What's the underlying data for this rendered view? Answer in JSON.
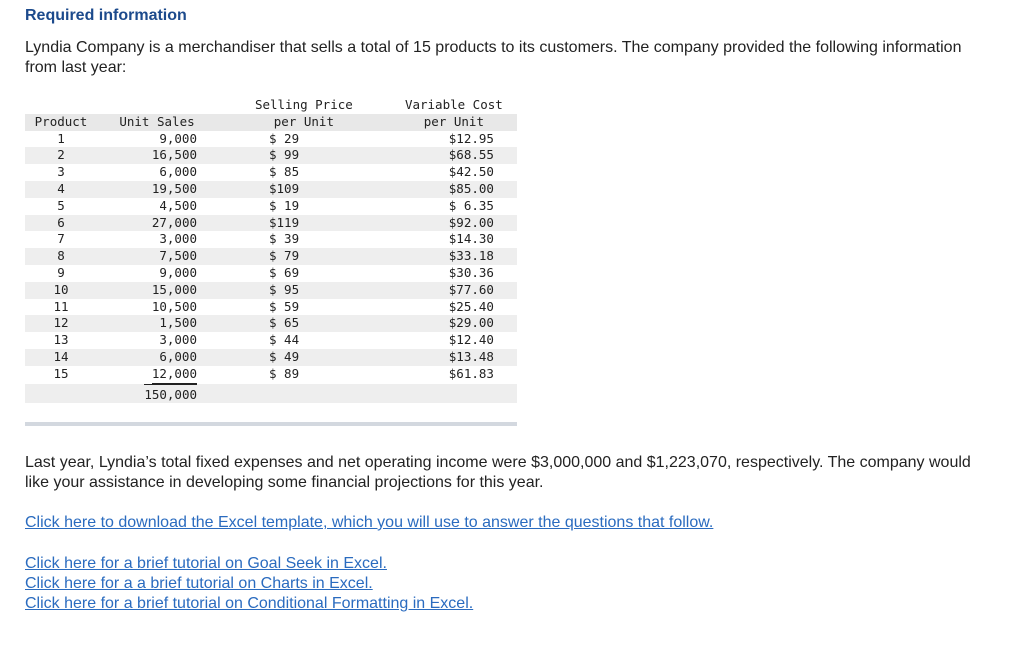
{
  "heading": "Required information",
  "intro": "Lyndia Company is a merchandiser that sells a total of 15 products to its customers. The company provided the following information from last year:",
  "table": {
    "headers": {
      "product": "Product",
      "unit_sales": "Unit Sales",
      "price_line1": "Selling Price",
      "price_line2": "per Unit",
      "vc_line1": "Variable Cost",
      "vc_line2": "per Unit"
    },
    "rows": [
      {
        "product": "1",
        "units": "9,000",
        "price": "$ 29",
        "vc": "$12.95"
      },
      {
        "product": "2",
        "units": "16,500",
        "price": "$ 99",
        "vc": "$68.55"
      },
      {
        "product": "3",
        "units": "6,000",
        "price": "$ 85",
        "vc": "$42.50"
      },
      {
        "product": "4",
        "units": "19,500",
        "price": "$109",
        "vc": "$85.00"
      },
      {
        "product": "5",
        "units": "4,500",
        "price": "$ 19",
        "vc": "$ 6.35"
      },
      {
        "product": "6",
        "units": "27,000",
        "price": "$119",
        "vc": "$92.00"
      },
      {
        "product": "7",
        "units": "3,000",
        "price": "$ 39",
        "vc": "$14.30"
      },
      {
        "product": "8",
        "units": "7,500",
        "price": "$ 79",
        "vc": "$33.18"
      },
      {
        "product": "9",
        "units": "9,000",
        "price": "$ 69",
        "vc": "$30.36"
      },
      {
        "product": "10",
        "units": "15,000",
        "price": "$ 95",
        "vc": "$77.60"
      },
      {
        "product": "11",
        "units": "10,500",
        "price": "$ 59",
        "vc": "$25.40"
      },
      {
        "product": "12",
        "units": "1,500",
        "price": "$ 65",
        "vc": "$29.00"
      },
      {
        "product": "13",
        "units": "3,000",
        "price": "$ 44",
        "vc": "$12.40"
      },
      {
        "product": "14",
        "units": "6,000",
        "price": "$ 49",
        "vc": "$13.48"
      },
      {
        "product": "15",
        "units": "12,000",
        "price": "$ 89",
        "vc": "$61.83"
      }
    ],
    "total_units": "150,000"
  },
  "paragraph": "Last year, Lyndia’s total fixed expenses and net operating income were $3,000,000 and $1,223,070, respectively. The company would like your assistance in developing some financial projections for this year.",
  "links": {
    "excel_template": "Click here to download the Excel template, which you will use to answer the questions that follow.",
    "goal_seek": "Click here for a brief tutorial on Goal Seek in Excel.",
    "charts": "Click here for a a brief tutorial on Charts in Excel.",
    "conditional_formatting": "Click here for a brief tutorial on Conditional Formatting in Excel."
  },
  "colors": {
    "heading": "#1c4a8c",
    "link": "#2a6bbf",
    "row_shade": "#eeeeee",
    "header_shade": "#e8e8e8"
  }
}
